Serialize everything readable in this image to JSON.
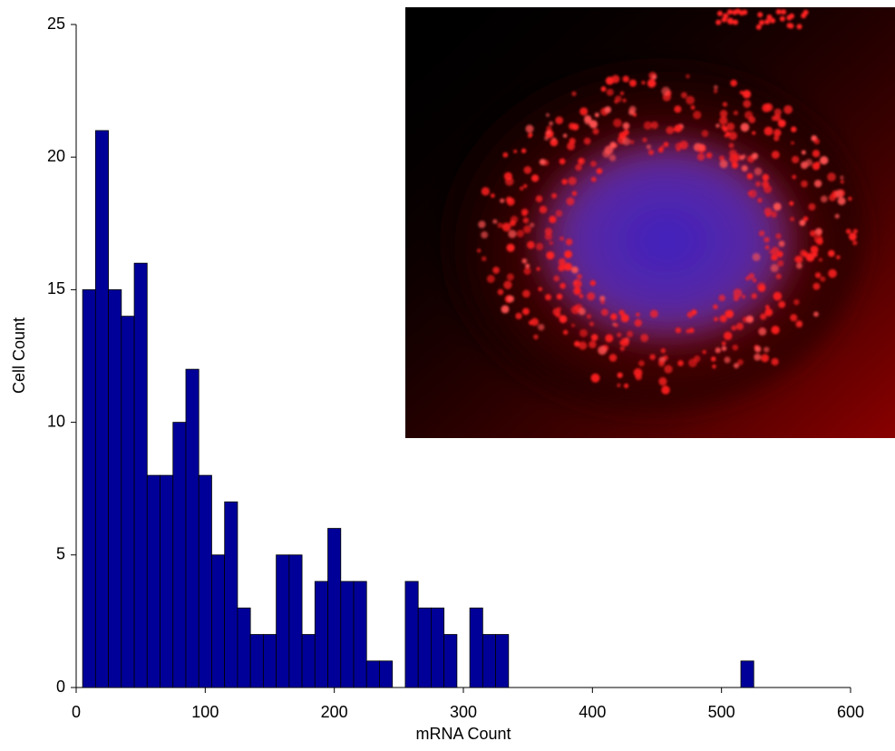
{
  "chart_data": {
    "type": "histogram",
    "xlabel": "mRNA Count",
    "ylabel": "Cell Count",
    "bins": [
      5,
      15,
      25,
      35,
      45,
      55,
      65,
      75,
      85,
      95,
      105,
      115,
      125,
      135,
      145,
      155,
      165,
      175,
      185,
      195,
      205,
      215,
      225,
      235,
      245,
      255,
      265,
      275,
      285,
      295,
      305,
      315,
      325,
      335,
      345,
      355,
      365,
      375,
      385,
      395,
      405,
      415,
      425,
      435,
      445,
      455,
      465,
      475,
      485,
      495,
      505,
      515,
      525
    ],
    "counts": [
      15,
      21,
      15,
      14,
      16,
      8,
      8,
      10,
      12,
      8,
      5,
      7,
      3,
      2,
      2,
      5,
      5,
      2,
      4,
      6,
      4,
      4,
      1,
      1,
      0,
      4,
      3,
      3,
      2,
      0,
      3,
      2,
      2,
      0,
      0,
      0,
      0,
      0,
      0,
      0,
      0,
      0,
      0,
      0,
      0,
      0,
      0,
      0,
      0,
      0,
      0,
      1
    ],
    "color": "#000099",
    "xlim": [
      0,
      600
    ],
    "xticks": [
      0,
      100,
      200,
      300,
      400,
      500,
      600
    ],
    "ylim": [
      0,
      25
    ],
    "yticks": [
      0,
      5,
      10,
      15,
      20,
      25
    ]
  }
}
